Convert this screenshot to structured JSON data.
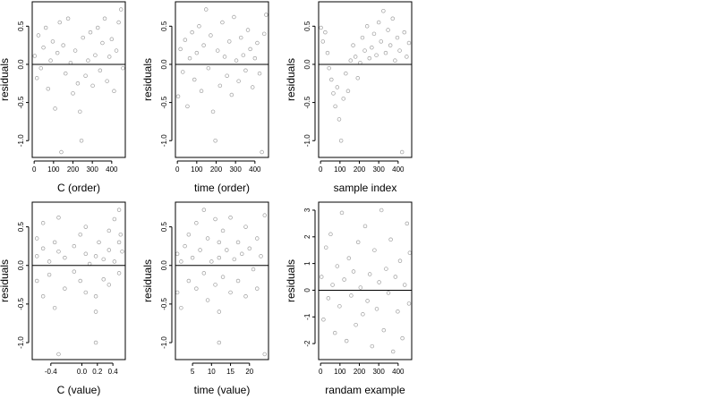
{
  "chart_data": [
    {
      "type": "scatter",
      "xlabel": "C (order)",
      "ylabel": "residuals",
      "xlim": [
        -10,
        470
      ],
      "ylim": [
        -1.22,
        0.82
      ],
      "xticks": [
        0,
        100,
        200,
        300,
        400
      ],
      "xtick_labels": [
        "0",
        "100",
        "200",
        "300",
        "400"
      ],
      "yticks": [
        -1.0,
        -0.5,
        0.0,
        0.5
      ],
      "ytick_labels": [
        "-1.0",
        "-0.5",
        "0.0",
        "0.5"
      ],
      "hline": 0,
      "grid": false,
      "points": [
        [
          3,
          0.11
        ],
        [
          14,
          -0.18
        ],
        [
          22,
          0.38
        ],
        [
          35,
          -0.05
        ],
        [
          48,
          0.22
        ],
        [
          60,
          0.48
        ],
        [
          72,
          -0.32
        ],
        [
          85,
          0.05
        ],
        [
          96,
          0.3
        ],
        [
          108,
          -0.58
        ],
        [
          120,
          0.15
        ],
        [
          132,
          0.55
        ],
        [
          140,
          -1.15
        ],
        [
          150,
          0.25
        ],
        [
          162,
          -0.12
        ],
        [
          175,
          0.6
        ],
        [
          188,
          0.02
        ],
        [
          200,
          -0.38
        ],
        [
          212,
          0.18
        ],
        [
          225,
          -0.25
        ],
        [
          236,
          -0.62
        ],
        [
          244,
          -1.0
        ],
        [
          252,
          0.35
        ],
        [
          265,
          -0.15
        ],
        [
          278,
          0.05
        ],
        [
          290,
          0.42
        ],
        [
          302,
          -0.28
        ],
        [
          315,
          0.12
        ],
        [
          328,
          0.48
        ],
        [
          340,
          -0.08
        ],
        [
          352,
          0.28
        ],
        [
          364,
          0.6
        ],
        [
          376,
          -0.22
        ],
        [
          388,
          0.1
        ],
        [
          400,
          0.33
        ],
        [
          412,
          -0.35
        ],
        [
          424,
          0.18
        ],
        [
          436,
          0.55
        ],
        [
          448,
          0.72
        ],
        [
          458,
          -0.05
        ]
      ]
    },
    {
      "type": "scatter",
      "xlabel": "time (order)",
      "ylabel": "residuals",
      "xlim": [
        -10,
        470
      ],
      "ylim": [
        -1.22,
        0.82
      ],
      "xticks": [
        0,
        100,
        200,
        300,
        400
      ],
      "xtick_labels": [
        "0",
        "100",
        "200",
        "300",
        "400"
      ],
      "yticks": [
        -1.0,
        -0.5,
        0.0,
        0.5
      ],
      "ytick_labels": [
        "-1.0",
        "-0.5",
        "0.0",
        "0.5"
      ],
      "hline": 0,
      "grid": false,
      "points": [
        [
          4,
          -0.42
        ],
        [
          16,
          0.2
        ],
        [
          28,
          -0.1
        ],
        [
          40,
          0.32
        ],
        [
          52,
          -0.55
        ],
        [
          64,
          0.08
        ],
        [
          76,
          0.42
        ],
        [
          88,
          -0.2
        ],
        [
          100,
          0.15
        ],
        [
          112,
          0.5
        ],
        [
          124,
          -0.35
        ],
        [
          136,
          0.25
        ],
        [
          148,
          0.72
        ],
        [
          160,
          -0.05
        ],
        [
          172,
          0.38
        ],
        [
          184,
          -0.62
        ],
        [
          196,
          -1.0
        ],
        [
          208,
          0.18
        ],
        [
          220,
          -0.28
        ],
        [
          232,
          0.55
        ],
        [
          244,
          0.1
        ],
        [
          256,
          -0.15
        ],
        [
          268,
          0.3
        ],
        [
          280,
          -0.4
        ],
        [
          292,
          0.62
        ],
        [
          304,
          0.05
        ],
        [
          316,
          -0.22
        ],
        [
          328,
          0.35
        ],
        [
          340,
          0.12
        ],
        [
          352,
          -0.08
        ],
        [
          364,
          0.45
        ],
        [
          376,
          0.2
        ],
        [
          388,
          -0.3
        ],
        [
          400,
          0.08
        ],
        [
          412,
          0.28
        ],
        [
          424,
          -0.12
        ],
        [
          436,
          -1.15
        ],
        [
          448,
          0.4
        ],
        [
          458,
          0.65
        ]
      ]
    },
    {
      "type": "scatter",
      "xlabel": "sample index",
      "ylabel": "residuals",
      "xlim": [
        -10,
        470
      ],
      "ylim": [
        -1.22,
        0.82
      ],
      "xticks": [
        0,
        100,
        200,
        300,
        400
      ],
      "xtick_labels": [
        "0",
        "100",
        "200",
        "300",
        "400"
      ],
      "yticks": [
        -1.0,
        -0.5,
        0.0,
        0.5
      ],
      "ytick_labels": [
        "-1.0",
        "-0.5",
        "0.0",
        "0.5"
      ],
      "hline": 0,
      "grid": false,
      "points": [
        [
          2,
          0.48
        ],
        [
          12,
          0.3
        ],
        [
          24,
          0.42
        ],
        [
          36,
          0.15
        ],
        [
          44,
          -0.05
        ],
        [
          56,
          -0.2
        ],
        [
          66,
          -0.38
        ],
        [
          76,
          -0.55
        ],
        [
          86,
          -0.3
        ],
        [
          96,
          -0.72
        ],
        [
          106,
          -1.0
        ],
        [
          118,
          -0.45
        ],
        [
          130,
          -0.12
        ],
        [
          142,
          -0.35
        ],
        [
          155,
          0.05
        ],
        [
          168,
          0.25
        ],
        [
          180,
          0.1
        ],
        [
          192,
          -0.18
        ],
        [
          204,
          0.02
        ],
        [
          216,
          0.35
        ],
        [
          228,
          0.18
        ],
        [
          240,
          0.5
        ],
        [
          252,
          0.08
        ],
        [
          264,
          0.22
        ],
        [
          276,
          0.4
        ],
        [
          288,
          0.12
        ],
        [
          300,
          0.55
        ],
        [
          312,
          0.3
        ],
        [
          324,
          0.7
        ],
        [
          336,
          0.15
        ],
        [
          348,
          0.45
        ],
        [
          360,
          0.25
        ],
        [
          372,
          0.6
        ],
        [
          384,
          0.05
        ],
        [
          396,
          0.35
        ],
        [
          408,
          0.18
        ],
        [
          420,
          -1.15
        ],
        [
          432,
          0.42
        ],
        [
          444,
          0.1
        ],
        [
          456,
          0.28
        ]
      ]
    },
    {
      "type": "scatter",
      "xlabel": "C (value)",
      "ylabel": "residuals",
      "xlim": [
        -0.64,
        0.56
      ],
      "ylim": [
        -1.22,
        0.82
      ],
      "xticks": [
        -0.4,
        0.0,
        0.2,
        0.4
      ],
      "xtick_labels": [
        "-0.4",
        "0.0",
        "0.2",
        "0.4"
      ],
      "yticks": [
        -1.0,
        -0.5,
        0.0,
        0.5
      ],
      "ytick_labels": [
        "-1.0",
        "-0.5",
        "0.0",
        "0.5"
      ],
      "hline": 0,
      "grid": false,
      "points": [
        [
          -0.58,
          0.12
        ],
        [
          -0.58,
          -0.2
        ],
        [
          -0.58,
          0.35
        ],
        [
          -0.5,
          0.22
        ],
        [
          -0.5,
          -0.4
        ],
        [
          -0.5,
          0.55
        ],
        [
          -0.42,
          0.05
        ],
        [
          -0.42,
          -0.12
        ],
        [
          -0.35,
          0.3
        ],
        [
          -0.35,
          -0.55
        ],
        [
          -0.3,
          0.62
        ],
        [
          -0.3,
          0.18
        ],
        [
          -0.3,
          -1.15
        ],
        [
          -0.22,
          0.1
        ],
        [
          -0.22,
          -0.3
        ],
        [
          -0.1,
          0.25
        ],
        [
          -0.1,
          -0.08
        ],
        [
          -0.02,
          0.4
        ],
        [
          -0.02,
          -0.2
        ],
        [
          0.05,
          0.15
        ],
        [
          0.05,
          0.5
        ],
        [
          0.05,
          -0.35
        ],
        [
          0.1,
          0.02
        ],
        [
          0.18,
          -0.6
        ],
        [
          0.18,
          -1.0
        ],
        [
          0.18,
          0.12
        ],
        [
          0.18,
          -0.4
        ],
        [
          0.22,
          0.3
        ],
        [
          0.28,
          0.08
        ],
        [
          0.28,
          -0.18
        ],
        [
          0.35,
          0.45
        ],
        [
          0.35,
          0.2
        ],
        [
          0.35,
          -0.25
        ],
        [
          0.42,
          0.6
        ],
        [
          0.42,
          0.05
        ],
        [
          0.48,
          0.72
        ],
        [
          0.48,
          0.3
        ],
        [
          0.48,
          -0.1
        ],
        [
          0.5,
          0.4
        ],
        [
          0.52,
          0.18
        ]
      ]
    },
    {
      "type": "scatter",
      "xlabel": "time (value)",
      "ylabel": "residuals",
      "xlim": [
        0.5,
        25
      ],
      "ylim": [
        -1.22,
        0.82
      ],
      "xticks": [
        5,
        10,
        15,
        20
      ],
      "xtick_labels": [
        "5",
        "10",
        "15",
        "20"
      ],
      "yticks": [
        -1.0,
        -0.5,
        0.0,
        0.5
      ],
      "ytick_labels": [
        "-1.0",
        "-0.5",
        "0.0",
        "0.5"
      ],
      "hline": 0,
      "grid": false,
      "points": [
        [
          1,
          -0.35
        ],
        [
          1,
          0.15
        ],
        [
          2,
          -0.55
        ],
        [
          2,
          0.05
        ],
        [
          3,
          0.25
        ],
        [
          4,
          -0.2
        ],
        [
          4,
          0.4
        ],
        [
          5,
          0.1
        ],
        [
          6,
          -0.3
        ],
        [
          6,
          0.55
        ],
        [
          7,
          0.2
        ],
        [
          8,
          -0.1
        ],
        [
          8,
          0.72
        ],
        [
          9,
          0.35
        ],
        [
          9,
          -0.45
        ],
        [
          10,
          0.05
        ],
        [
          11,
          0.6
        ],
        [
          11,
          -0.25
        ],
        [
          12,
          -1.0
        ],
        [
          12,
          -0.6
        ],
        [
          12,
          0.3
        ],
        [
          12,
          0.1
        ],
        [
          13,
          -0.15
        ],
        [
          13,
          0.45
        ],
        [
          14,
          0.2
        ],
        [
          15,
          -0.35
        ],
        [
          15,
          0.62
        ],
        [
          16,
          0.08
        ],
        [
          17,
          -0.2
        ],
        [
          17,
          0.3
        ],
        [
          18,
          0.15
        ],
        [
          19,
          -0.4
        ],
        [
          19,
          0.5
        ],
        [
          20,
          0.22
        ],
        [
          21,
          -0.05
        ],
        [
          22,
          0.35
        ],
        [
          22,
          -0.3
        ],
        [
          23,
          0.12
        ],
        [
          24,
          0.65
        ],
        [
          24,
          -1.15
        ]
      ]
    },
    {
      "type": "scatter",
      "xlabel": "randam example",
      "ylabel": "residuals",
      "xlim": [
        -10,
        470
      ],
      "ylim": [
        -2.6,
        3.3
      ],
      "xticks": [
        0,
        100,
        200,
        300,
        400
      ],
      "xtick_labels": [
        "0",
        "100",
        "200",
        "300",
        "400"
      ],
      "yticks": [
        -2,
        -1,
        0,
        1,
        2,
        3
      ],
      "ytick_labels": [
        "-2",
        "-1",
        "0",
        "1",
        "2",
        "3"
      ],
      "hline": 0,
      "grid": false,
      "points": [
        [
          5,
          0.5
        ],
        [
          15,
          -1.1
        ],
        [
          28,
          1.6
        ],
        [
          40,
          -0.3
        ],
        [
          52,
          2.1
        ],
        [
          62,
          0.2
        ],
        [
          74,
          -1.6
        ],
        [
          86,
          0.9
        ],
        [
          98,
          -0.6
        ],
        [
          110,
          2.9
        ],
        [
          122,
          0.4
        ],
        [
          134,
          -1.9
        ],
        [
          146,
          1.2
        ],
        [
          158,
          -0.2
        ],
        [
          170,
          0.7
        ],
        [
          182,
          -1.3
        ],
        [
          194,
          1.8
        ],
        [
          206,
          0.1
        ],
        [
          218,
          -0.9
        ],
        [
          230,
          2.4
        ],
        [
          242,
          -0.4
        ],
        [
          254,
          0.6
        ],
        [
          266,
          -2.1
        ],
        [
          278,
          1.5
        ],
        [
          290,
          -0.7
        ],
        [
          302,
          0.3
        ],
        [
          314,
          3.0
        ],
        [
          326,
          -1.5
        ],
        [
          338,
          0.8
        ],
        [
          350,
          -0.1
        ],
        [
          362,
          1.9
        ],
        [
          374,
          -2.3
        ],
        [
          386,
          0.5
        ],
        [
          398,
          -0.8
        ],
        [
          410,
          1.1
        ],
        [
          422,
          -1.8
        ],
        [
          434,
          0.2
        ],
        [
          446,
          2.5
        ],
        [
          456,
          -0.5
        ],
        [
          460,
          1.4
        ]
      ]
    }
  ]
}
